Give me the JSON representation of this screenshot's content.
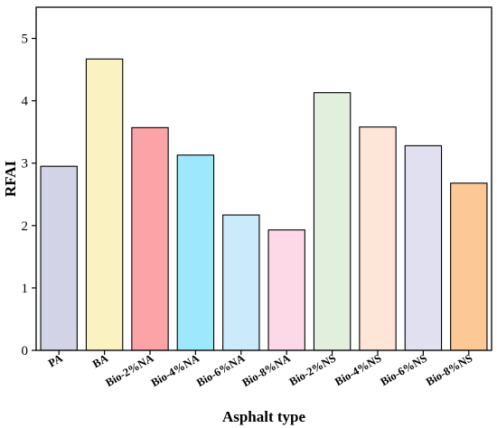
{
  "chart_data": {
    "type": "bar",
    "xlabel": "Asphalt type",
    "ylabel": "RFAI",
    "ylim": [
      0,
      5.5
    ],
    "yticks": [
      0,
      1,
      2,
      3,
      4,
      5
    ],
    "grid": false,
    "legend": "none",
    "categories": [
      "PA",
      "BA",
      "Bio-2%NA",
      "Bio-4%NA",
      "Bio-6%NA",
      "Bio-8%NA",
      "Bio-2%NS",
      "Bio-4%NS",
      "Bio-6%NS",
      "Bio-8%NS"
    ],
    "values": [
      2.95,
      4.67,
      3.57,
      3.13,
      2.17,
      1.93,
      4.13,
      3.58,
      3.28,
      2.68
    ],
    "colors": [
      "#d3d3e8",
      "#faf2c0",
      "#fca3a8",
      "#9ee8fb",
      "#cbebfa",
      "#fdd8e6",
      "#e1efdc",
      "#fde5d7",
      "#e1e0f0",
      "#fcc895"
    ]
  }
}
